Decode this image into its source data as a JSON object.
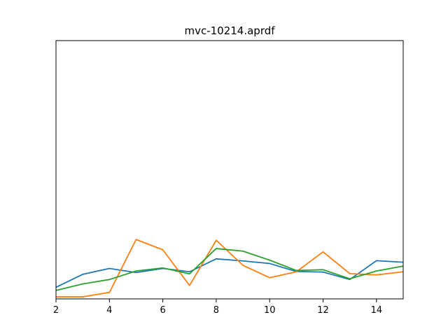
{
  "chart_data": {
    "type": "line",
    "title": "mvc-10214.aprdf",
    "xlabel": "",
    "ylabel": "",
    "xlim": [
      2,
      15
    ],
    "ylim": [
      0,
      1
    ],
    "x_ticks": [
      2,
      4,
      6,
      8,
      10,
      12,
      14
    ],
    "grid": false,
    "x": [
      2,
      3,
      4,
      5,
      6,
      7,
      8,
      9,
      10,
      11,
      12,
      13,
      14,
      15
    ],
    "series": [
      {
        "color": "#1f77b4",
        "values": [
          0.045,
          0.095,
          0.118,
          0.102,
          0.118,
          0.105,
          0.155,
          0.147,
          0.137,
          0.106,
          0.104,
          0.075,
          0.148,
          0.142
        ]
      },
      {
        "color": "#ff7f0e",
        "values": [
          0.008,
          0.008,
          0.025,
          0.23,
          0.19,
          0.052,
          0.227,
          0.13,
          0.082,
          0.105,
          0.182,
          0.098,
          0.093,
          0.105
        ]
      },
      {
        "color": "#2ca02c",
        "values": [
          0.033,
          0.058,
          0.075,
          0.108,
          0.12,
          0.097,
          0.195,
          0.185,
          0.15,
          0.11,
          0.113,
          0.078,
          0.108,
          0.127
        ]
      }
    ]
  }
}
